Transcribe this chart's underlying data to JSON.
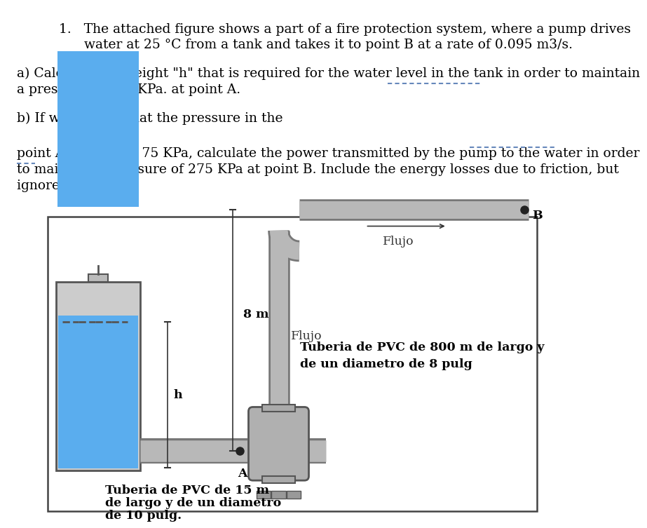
{
  "title_line1": "1.   The attached figure shows a part of a fire protection system, where a pump drives",
  "title_line2": "      water at 25 °C from a tank and takes it to point B at a rate of 0.095 m3/s.",
  "part_a": "a) Calculate the height \"h\" that is required for the water level in the tank in order to maintain",
  "part_a2": "a pressure of 100 KPa. at point A.",
  "part_b": "b) If we assume that the pressure in the",
  "part_b2": "point A is equal to 75 KPa, calculate the power transmitted by the pump to the water in order",
  "part_b3": "to maintain a pressure of 275 KPa at point B. Include the energy losses due to friction, but",
  "part_b4": "ignore the others.",
  "label_8m": "8 m",
  "label_h": "h",
  "label_A": "A",
  "label_B": "B",
  "label_flujo_vert": "Flujo",
  "label_flujo_horiz": "Flujo",
  "label_tube_vert1": "Tuberia de PVC de 800 m de largo y",
  "label_tube_vert2": "de un diametro de 8 pulg",
  "label_tube_horiz1": "Tuberia de PVC de 15 m",
  "label_tube_horiz2": "de largo y de un diametro",
  "label_tube_horiz3": "de 10 pulg.",
  "bg_color": "#ffffff",
  "tank_fill_color": "#5aadee",
  "pipe_color": "#b8b8b8",
  "pipe_dark": "#777777",
  "pump_color": "#b0b0b0",
  "text_color": "#000000",
  "box_border": "#444444",
  "underline_color": "#6688bb"
}
